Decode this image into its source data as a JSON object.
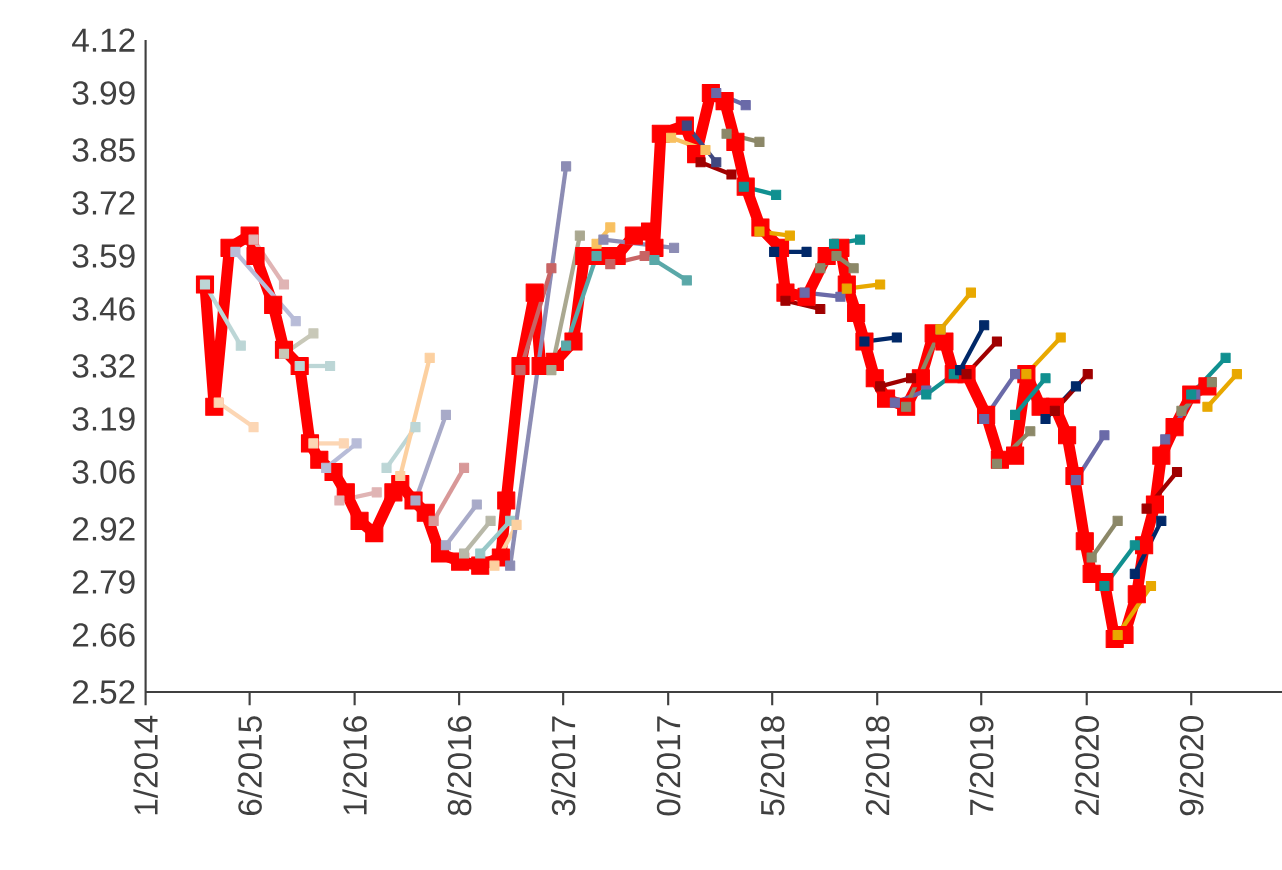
{
  "chart_data": {
    "type": "line",
    "marker": "square",
    "line_style": "solid",
    "xlim": [
      "2014-11-01",
      "2021-03-05"
    ],
    "ylim": [
      2.52,
      4.12
    ],
    "xticks": [
      {
        "value": "2014-11",
        "label": "1/2014"
      },
      {
        "value": "2015-06",
        "label": "6/2015"
      },
      {
        "value": "2016-01",
        "label": "1/2016"
      },
      {
        "value": "2016-08",
        "label": "8/2016"
      },
      {
        "value": "2017-03",
        "label": "3/2017"
      },
      {
        "value": "2017-10",
        "label": "0/2017"
      },
      {
        "value": "2018-05",
        "label": "5/2018"
      },
      {
        "value": "2018-12",
        "label": "2/2018"
      },
      {
        "value": "2019-07",
        "label": "7/2019"
      },
      {
        "value": "2020-02",
        "label": "2/2020"
      },
      {
        "value": "2020-09",
        "label": "9/2020"
      }
    ],
    "yticks": [
      2.52,
      2.66,
      2.79,
      2.92,
      3.06,
      3.19,
      3.32,
      3.46,
      3.59,
      3.72,
      3.85,
      3.99,
      4.12
    ],
    "series": [
      {
        "color": "#ff0000",
        "x": [
          "2015-03-02",
          "2015-03-21",
          "2015-04-21",
          "2015-06-01",
          "2015-06-13",
          "2015-07-19",
          "2015-08-10",
          "2015-09-11",
          "2015-10-02",
          "2015-10-21",
          "2015-11-19",
          "2015-12-14",
          "2016-01-11",
          "2016-02-10",
          "2016-03-20",
          "2016-04-03",
          "2016-04-30",
          "2016-05-25",
          "2016-06-23",
          "2016-08-03",
          "2016-09-13",
          "2016-10-25",
          "2016-11-05",
          "2016-12-04",
          "2017-01-02",
          "2017-01-14",
          "2017-02-12",
          "2017-03-22",
          "2017-04-13",
          "2017-05-14",
          "2017-06-18",
          "2017-07-23",
          "2017-08-25",
          "2017-09-03",
          "2017-09-16",
          "2017-11-04",
          "2017-11-27",
          "2017-12-27",
          "2018-01-24",
          "2018-02-15",
          "2018-03-08",
          "2018-04-07",
          "2018-05-17",
          "2018-05-28",
          "2018-07-10",
          "2018-08-20",
          "2018-09-17",
          "2018-09-30",
          "2018-10-19",
          "2018-11-05",
          "2018-11-26",
          "2018-12-19",
          "2019-01-29",
          "2019-02-28",
          "2019-03-26",
          "2019-04-17",
          "2019-05-06",
          "2019-06-01",
          "2019-07-11",
          "2019-08-08",
          "2019-09-08",
          "2019-10-01",
          "2019-10-30",
          "2019-11-28",
          "2019-12-23",
          "2020-01-07",
          "2020-01-28",
          "2020-02-11",
          "2020-03-08",
          "2020-03-29",
          "2020-04-18",
          "2020-05-13",
          "2020-05-28",
          "2020-06-19",
          "2020-07-02",
          "2020-07-29",
          "2020-09-01",
          "2020-10-04"
        ],
        "values": [
          3.52,
          3.22,
          3.61,
          3.64,
          3.59,
          3.47,
          3.36,
          3.32,
          3.13,
          3.09,
          3.06,
          3.01,
          2.94,
          2.91,
          3.01,
          3.03,
          2.99,
          2.96,
          2.86,
          2.84,
          2.83,
          2.85,
          2.99,
          3.32,
          3.5,
          3.32,
          3.33,
          3.38,
          3.59,
          3.59,
          3.59,
          3.64,
          3.65,
          3.61,
          3.89,
          3.91,
          3.84,
          3.99,
          3.97,
          3.87,
          3.76,
          3.66,
          3.61,
          3.5,
          3.49,
          3.59,
          3.61,
          3.52,
          3.45,
          3.38,
          3.29,
          3.24,
          3.22,
          3.29,
          3.4,
          3.38,
          3.3,
          3.3,
          3.2,
          3.09,
          3.1,
          3.3,
          3.22,
          3.22,
          3.15,
          3.05,
          2.89,
          2.81,
          2.79,
          2.65,
          2.66,
          2.76,
          2.88,
          2.98,
          3.1,
          3.17,
          3.25,
          3.27
        ]
      },
      {
        "color": "#bcd6d6",
        "x": [
          "2015-03-02",
          "2015-05-14"
        ],
        "values": [
          3.52,
          3.37
        ]
      },
      {
        "color": "#fcd6b4",
        "x": [
          "2015-03-30",
          "2015-06-09"
        ],
        "values": [
          3.23,
          3.17
        ]
      },
      {
        "color": "#b8bcd8",
        "x": [
          "2015-05-03",
          "2015-09-03"
        ],
        "values": [
          3.6,
          3.43
        ]
      },
      {
        "color": "#e0b4b4",
        "x": [
          "2015-06-09",
          "2015-08-10"
        ],
        "values": [
          3.63,
          3.52
        ]
      },
      {
        "color": "#c8c8b8",
        "x": [
          "2015-08-10",
          "2015-10-09"
        ],
        "values": [
          3.35,
          3.4
        ]
      },
      {
        "color": "#bcd6d6",
        "x": [
          "2015-09-11",
          "2015-11-12"
        ],
        "values": [
          3.32,
          3.32
        ]
      },
      {
        "color": "#fcd6b4",
        "x": [
          "2015-10-09",
          "2015-12-10"
        ],
        "values": [
          3.13,
          3.13
        ]
      },
      {
        "color": "#b8bcd8",
        "x": [
          "2015-11-04",
          "2016-01-05"
        ],
        "values": [
          3.07,
          3.13
        ]
      },
      {
        "color": "#e0b4b4",
        "x": [
          "2015-12-01",
          "2016-02-15"
        ],
        "values": [
          2.99,
          3.01
        ]
      },
      {
        "color": "#bcd6d6",
        "x": [
          "2016-03-06",
          "2016-05-04"
        ],
        "values": [
          3.07,
          3.17
        ]
      },
      {
        "color": "#fcd0a0",
        "x": [
          "2016-04-03",
          "2016-06-02"
        ],
        "values": [
          3.05,
          3.34
        ]
      },
      {
        "color": "#a8aac8",
        "x": [
          "2016-05-04",
          "2016-07-05"
        ],
        "values": [
          2.99,
          3.2
        ]
      },
      {
        "color": "#d89898",
        "x": [
          "2016-06-10",
          "2016-08-11"
        ],
        "values": [
          2.94,
          3.07
        ]
      },
      {
        "color": "#a8aac8",
        "x": [
          "2016-07-05",
          "2016-09-06"
        ],
        "values": [
          2.88,
          2.98
        ]
      },
      {
        "color": "#b8b8a8",
        "x": [
          "2016-08-11",
          "2016-10-04"
        ],
        "values": [
          2.86,
          2.94
        ]
      },
      {
        "color": "#98c8c8",
        "x": [
          "2016-09-13",
          "2016-11-13"
        ],
        "values": [
          2.86,
          2.94
        ]
      },
      {
        "color": "#fcd0a0",
        "x": [
          "2016-10-12",
          "2016-11-26"
        ],
        "values": [
          2.83,
          2.93
        ]
      },
      {
        "color": "#8c8cb4",
        "x": [
          "2016-11-13",
          "2017-03-07"
        ],
        "values": [
          2.83,
          3.81
        ]
      },
      {
        "color": "#c86464",
        "x": [
          "2016-12-04",
          "2017-02-05"
        ],
        "values": [
          3.31,
          3.56
        ]
      },
      {
        "color": "#aaa890",
        "x": [
          "2017-02-05",
          "2017-04-04"
        ],
        "values": [
          3.31,
          3.64
        ]
      },
      {
        "color": "#5aa8a8",
        "x": [
          "2017-03-07",
          "2017-05-08"
        ],
        "values": [
          3.37,
          3.59
        ]
      },
      {
        "color": "#f8c060",
        "x": [
          "2017-05-08",
          "2017-06-05"
        ],
        "values": [
          3.62,
          3.66
        ]
      },
      {
        "color": "#8c8cb4",
        "x": [
          "2017-05-22",
          "2017-10-13"
        ],
        "values": [
          3.63,
          3.61
        ]
      },
      {
        "color": "#c86464",
        "x": [
          "2017-06-05",
          "2017-08-14"
        ],
        "values": [
          3.57,
          3.59
        ]
      },
      {
        "color": "#5aa8a8",
        "x": [
          "2017-09-03",
          "2017-11-08"
        ],
        "values": [
          3.58,
          3.53
        ]
      },
      {
        "color": "#f8c060",
        "x": [
          "2017-10-07",
          "2017-12-16"
        ],
        "values": [
          3.88,
          3.85
        ]
      },
      {
        "color": "#404880",
        "x": [
          "2017-11-08",
          "2018-01-07"
        ],
        "values": [
          3.91,
          3.82
        ]
      },
      {
        "color": "#a00000",
        "x": [
          "2017-12-06",
          "2018-02-07"
        ],
        "values": [
          3.82,
          3.79
        ]
      },
      {
        "color": "#6a6aa8",
        "x": [
          "2018-01-07",
          "2018-03-08"
        ],
        "values": [
          3.99,
          3.96
        ]
      },
      {
        "color": "#8c8868",
        "x": [
          "2018-01-28",
          "2018-04-05"
        ],
        "values": [
          3.89,
          3.87
        ]
      },
      {
        "color": "#109090",
        "x": [
          "2018-03-04",
          "2018-05-09"
        ],
        "values": [
          3.76,
          3.74
        ]
      },
      {
        "color": "#e8a800",
        "x": [
          "2018-04-05",
          "2018-06-06"
        ],
        "values": [
          3.65,
          3.64
        ]
      },
      {
        "color": "#002868",
        "x": [
          "2018-05-05",
          "2018-07-10"
        ],
        "values": [
          3.6,
          3.6
        ]
      },
      {
        "color": "#a00000",
        "x": [
          "2018-05-28",
          "2018-08-07"
        ],
        "values": [
          3.48,
          3.46
        ]
      },
      {
        "color": "#6a6aa8",
        "x": [
          "2018-07-06",
          "2018-09-17"
        ],
        "values": [
          3.5,
          3.49
        ]
      },
      {
        "color": "#8c8868",
        "x": [
          "2018-08-07",
          "2018-09-09",
          "2018-10-14"
        ],
        "values": [
          3.56,
          3.59,
          3.56
        ]
      },
      {
        "color": "#109090",
        "x": [
          "2018-09-04",
          "2018-10-27"
        ],
        "values": [
          3.62,
          3.63
        ]
      },
      {
        "color": "#e8a800",
        "x": [
          "2018-09-30",
          "2018-12-07"
        ],
        "values": [
          3.51,
          3.52
        ]
      },
      {
        "color": "#002868",
        "x": [
          "2018-11-05",
          "2019-01-10"
        ],
        "values": [
          3.38,
          3.39
        ]
      },
      {
        "color": "#a00000",
        "x": [
          "2018-12-07",
          "2019-02-08"
        ],
        "values": [
          3.27,
          3.29
        ]
      },
      {
        "color": "#6a6aa8",
        "x": [
          "2019-01-06",
          "2019-03-11"
        ],
        "values": [
          3.23,
          3.26
        ]
      },
      {
        "color": "#8c8868",
        "x": [
          "2019-01-29",
          "2019-04-09"
        ],
        "values": [
          3.22,
          3.41
        ]
      },
      {
        "color": "#109090",
        "x": [
          "2019-03-11",
          "2019-05-06"
        ],
        "values": [
          3.25,
          3.3
        ]
      },
      {
        "color": "#e8a800",
        "x": [
          "2019-04-09",
          "2019-06-10"
        ],
        "values": [
          3.41,
          3.5
        ]
      },
      {
        "color": "#002868",
        "x": [
          "2019-05-19",
          "2019-07-07"
        ],
        "values": [
          3.31,
          3.42
        ]
      },
      {
        "color": "#a00000",
        "x": [
          "2019-06-01",
          "2019-08-02"
        ],
        "values": [
          3.3,
          3.38
        ]
      },
      {
        "color": "#6a6aa8",
        "x": [
          "2019-07-07",
          "2019-09-08"
        ],
        "values": [
          3.19,
          3.3
        ]
      },
      {
        "color": "#8c8868",
        "x": [
          "2019-08-02",
          "2019-10-09"
        ],
        "values": [
          3.08,
          3.16
        ]
      },
      {
        "color": "#109090",
        "x": [
          "2019-09-08",
          "2019-11-09"
        ],
        "values": [
          3.2,
          3.29
        ]
      },
      {
        "color": "#e8a800",
        "x": [
          "2019-10-01",
          "2019-12-10"
        ],
        "values": [
          3.3,
          3.39
        ]
      },
      {
        "color": "#002868",
        "x": [
          "2019-11-09",
          "2020-01-10"
        ],
        "values": [
          3.19,
          3.27
        ]
      },
      {
        "color": "#a00000",
        "x": [
          "2019-11-28",
          "2020-02-03"
        ],
        "values": [
          3.21,
          3.3
        ]
      },
      {
        "color": "#6a6aa8",
        "x": [
          "2020-01-10",
          "2020-03-08"
        ],
        "values": [
          3.04,
          3.15
        ]
      },
      {
        "color": "#8c8868",
        "x": [
          "2020-02-11",
          "2020-04-04"
        ],
        "values": [
          2.85,
          2.94
        ]
      },
      {
        "color": "#109090",
        "x": [
          "2020-03-08",
          "2020-05-09"
        ],
        "values": [
          2.78,
          2.88
        ]
      },
      {
        "color": "#002868",
        "x": [
          "2020-05-09",
          "2020-07-02"
        ],
        "values": [
          2.81,
          2.94
        ]
      },
      {
        "color": "#e8a800",
        "x": [
          "2020-04-04",
          "2020-06-11"
        ],
        "values": [
          2.66,
          2.78
        ]
      },
      {
        "color": "#a00000",
        "x": [
          "2020-06-02",
          "2020-08-03"
        ],
        "values": [
          2.97,
          3.06
        ]
      },
      {
        "color": "#6a6aa8",
        "x": [
          "2020-07-10",
          "2020-09-09"
        ],
        "values": [
          3.14,
          3.25
        ]
      },
      {
        "color": "#8c8868",
        "x": [
          "2020-08-12",
          "2020-10-13"
        ],
        "values": [
          3.21,
          3.28
        ]
      },
      {
        "color": "#109090",
        "x": [
          "2020-09-01",
          "2020-11-10"
        ],
        "values": [
          3.25,
          3.34
        ]
      },
      {
        "color": "#e8a800",
        "x": [
          "2020-10-04",
          "2020-12-03"
        ],
        "values": [
          3.22,
          3.3
        ]
      }
    ]
  }
}
